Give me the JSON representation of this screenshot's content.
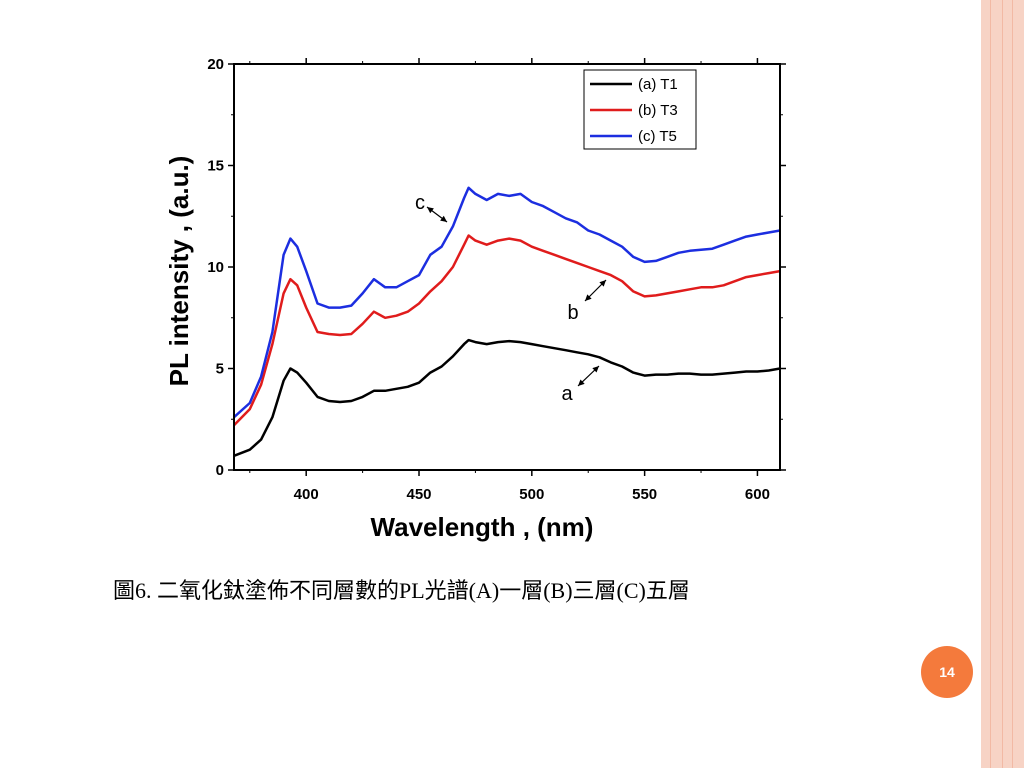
{
  "caption": "圖6. 二氧化鈦塗佈不同層數的PL光譜(A)一層(B)三層(C)五層",
  "page_number": "14",
  "colors": {
    "accent": "#f47a3c",
    "stripe": "#f7d3c5"
  },
  "chart_data": {
    "type": "line",
    "xlabel": "Wavelength , (nm)",
    "ylabel": "PL intensity , (a.u.)",
    "xlim": [
      368,
      610
    ],
    "ylim": [
      0,
      20
    ],
    "xticks": [
      400,
      450,
      500,
      550,
      600
    ],
    "yticks": [
      0,
      5,
      10,
      15,
      20
    ],
    "legend_position": "top-right",
    "series": [
      {
        "name": "(a) T1",
        "color": "#000000",
        "x": [
          368,
          375,
          380,
          385,
          390,
          393,
          396,
          400,
          405,
          410,
          415,
          420,
          425,
          430,
          435,
          440,
          445,
          450,
          455,
          460,
          465,
          470,
          472,
          475,
          480,
          485,
          490,
          495,
          500,
          505,
          510,
          515,
          520,
          525,
          530,
          535,
          540,
          545,
          550,
          555,
          560,
          565,
          570,
          575,
          580,
          585,
          590,
          595,
          600,
          605,
          610
        ],
        "y": [
          0.7,
          1.0,
          1.5,
          2.6,
          4.4,
          5.0,
          4.8,
          4.3,
          3.6,
          3.4,
          3.35,
          3.4,
          3.6,
          3.9,
          3.9,
          4.0,
          4.1,
          4.3,
          4.8,
          5.1,
          5.6,
          6.2,
          6.4,
          6.3,
          6.2,
          6.3,
          6.35,
          6.3,
          6.2,
          6.1,
          6.0,
          5.9,
          5.8,
          5.7,
          5.55,
          5.3,
          5.1,
          4.8,
          4.65,
          4.7,
          4.7,
          4.75,
          4.75,
          4.7,
          4.7,
          4.75,
          4.8,
          4.85,
          4.85,
          4.9,
          5.0
        ]
      },
      {
        "name": "(b) T3",
        "color": "#e01c1c",
        "x": [
          368,
          375,
          380,
          385,
          390,
          393,
          396,
          400,
          405,
          410,
          415,
          420,
          425,
          430,
          435,
          440,
          445,
          450,
          455,
          460,
          465,
          470,
          472,
          475,
          480,
          485,
          490,
          495,
          500,
          505,
          510,
          515,
          520,
          525,
          530,
          535,
          540,
          545,
          550,
          555,
          560,
          565,
          570,
          575,
          580,
          585,
          590,
          595,
          600,
          605,
          610
        ],
        "y": [
          2.2,
          3.0,
          4.2,
          6.2,
          8.7,
          9.4,
          9.1,
          8.0,
          6.8,
          6.7,
          6.65,
          6.7,
          7.2,
          7.8,
          7.5,
          7.6,
          7.8,
          8.2,
          8.8,
          9.3,
          10.0,
          11.1,
          11.55,
          11.3,
          11.1,
          11.3,
          11.4,
          11.3,
          11.0,
          10.8,
          10.6,
          10.4,
          10.2,
          10.0,
          9.8,
          9.6,
          9.3,
          8.8,
          8.55,
          8.6,
          8.7,
          8.8,
          8.9,
          9.0,
          9.0,
          9.1,
          9.3,
          9.5,
          9.6,
          9.7,
          9.8
        ]
      },
      {
        "name": "(c) T5",
        "color": "#1c2ee0",
        "x": [
          368,
          375,
          380,
          385,
          390,
          393,
          396,
          400,
          405,
          410,
          415,
          420,
          425,
          430,
          435,
          440,
          445,
          450,
          455,
          460,
          465,
          470,
          472,
          475,
          480,
          485,
          490,
          495,
          500,
          505,
          510,
          515,
          520,
          525,
          530,
          535,
          540,
          545,
          550,
          555,
          560,
          565,
          570,
          575,
          580,
          585,
          590,
          595,
          600,
          605,
          610
        ],
        "y": [
          2.6,
          3.3,
          4.6,
          6.8,
          10.6,
          11.4,
          11.0,
          9.8,
          8.2,
          8.0,
          8.0,
          8.1,
          8.7,
          9.4,
          9.0,
          9.0,
          9.3,
          9.6,
          10.6,
          11.0,
          12.0,
          13.4,
          13.9,
          13.6,
          13.3,
          13.6,
          13.5,
          13.6,
          13.2,
          13.0,
          12.7,
          12.4,
          12.2,
          11.8,
          11.6,
          11.3,
          11.0,
          10.5,
          10.25,
          10.3,
          10.5,
          10.7,
          10.8,
          10.85,
          10.9,
          11.1,
          11.3,
          11.5,
          11.6,
          11.7,
          11.8
        ]
      }
    ],
    "annotations": [
      {
        "text": "c",
        "x": 455,
        "y": 12.5
      },
      {
        "text": "b",
        "x": 535,
        "y": 9.3
      },
      {
        "text": "a",
        "x": 530,
        "y": 5.1
      }
    ]
  }
}
